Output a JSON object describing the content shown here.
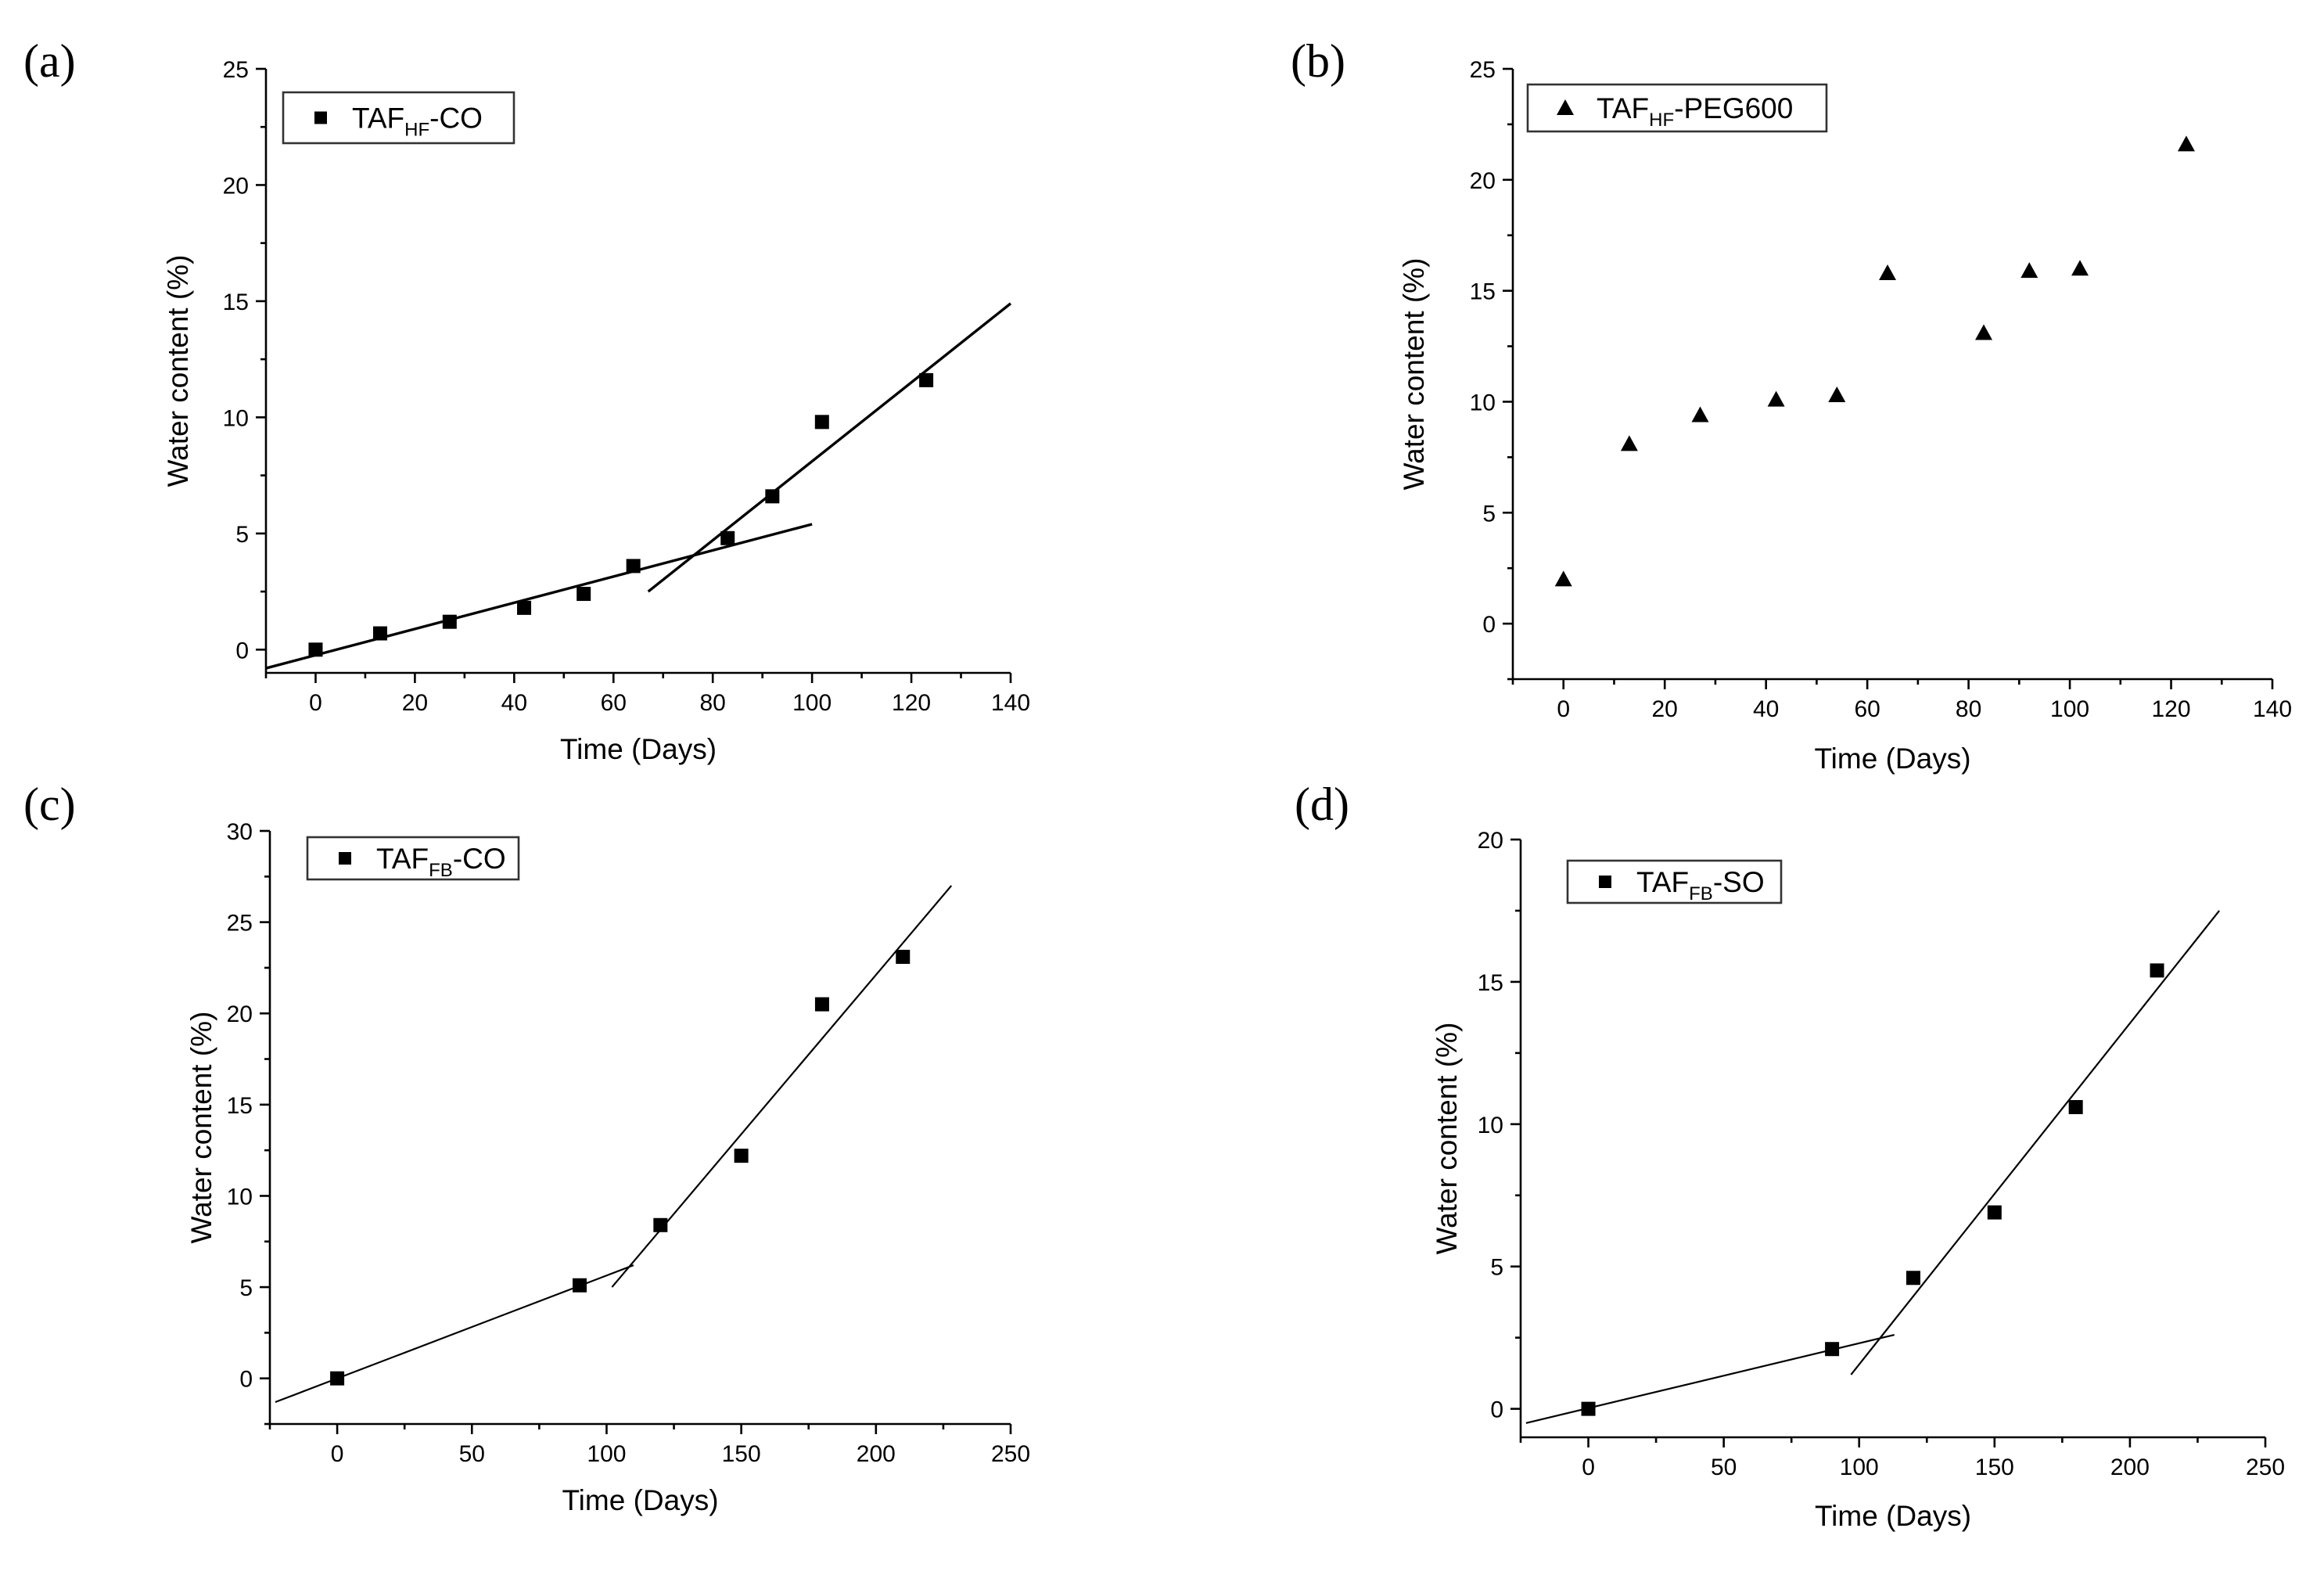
{
  "chart_data": [
    {
      "panel": "(a)",
      "type": "scatter",
      "marker": "square",
      "xlabel": "Time (Days)",
      "ylabel": "Water content (%)",
      "xlim": [
        -10,
        140
      ],
      "ylim": [
        -1,
        25
      ],
      "xticks": [
        0,
        20,
        40,
        60,
        80,
        100,
        120,
        140
      ],
      "yticks": [
        0,
        5,
        10,
        15,
        20,
        25
      ],
      "legend": {
        "base": "TAF",
        "sub": "HF",
        "suffix": "-CO",
        "position": "top-left"
      },
      "x": [
        0,
        13,
        27,
        42,
        54,
        64,
        83,
        92,
        102,
        123
      ],
      "y": [
        0,
        0.7,
        1.2,
        1.8,
        2.4,
        3.6,
        4.8,
        6.6,
        9.8,
        11.6
      ],
      "fit_lines": [
        {
          "x": [
            -10,
            100
          ],
          "y": [
            -0.8,
            5.4
          ]
        },
        {
          "x": [
            67,
            140
          ],
          "y": [
            2.5,
            14.9
          ]
        }
      ]
    },
    {
      "panel": "(b)",
      "type": "scatter",
      "marker": "triangle",
      "xlabel": "Time (Days)",
      "ylabel": "Water content (%)",
      "xlim": [
        -10,
        140
      ],
      "ylim": [
        -2.5,
        25
      ],
      "xticks": [
        0,
        20,
        40,
        60,
        80,
        100,
        120,
        140
      ],
      "yticks": [
        0,
        5,
        10,
        15,
        20,
        25
      ],
      "legend": {
        "base": "TAF",
        "sub": "HF",
        "suffix": "-PEG600",
        "position": "top-left"
      },
      "x": [
        0,
        13,
        27,
        42,
        54,
        64,
        83,
        92,
        102,
        123
      ],
      "y": [
        2.0,
        8.1,
        9.4,
        10.1,
        10.3,
        15.8,
        13.1,
        15.9,
        16.0,
        21.6
      ],
      "fit_lines": []
    },
    {
      "panel": "(c)",
      "type": "scatter",
      "marker": "square",
      "xlabel": "Time (Days)",
      "ylabel": "Water content (%)",
      "xlim": [
        -25,
        250
      ],
      "ylim": [
        -2.5,
        30
      ],
      "xticks": [
        0,
        50,
        100,
        150,
        200,
        250
      ],
      "yticks": [
        0,
        5,
        10,
        15,
        20,
        25,
        30
      ],
      "legend": {
        "base": "TAF",
        "sub": "FB",
        "suffix": "-CO",
        "position": "top-left"
      },
      "x": [
        0,
        90,
        120,
        150,
        180,
        210
      ],
      "y": [
        0,
        5.1,
        8.4,
        12.2,
        20.5,
        23.1
      ],
      "fit_lines": [
        {
          "x": [
            -23,
            110
          ],
          "y": [
            -1.3,
            6.2
          ]
        },
        {
          "x": [
            102,
            228
          ],
          "y": [
            5.0,
            27.0
          ]
        }
      ]
    },
    {
      "panel": "(d)",
      "type": "scatter",
      "marker": "square",
      "xlabel": "Time (Days)",
      "ylabel": "Water content (%)",
      "xlim": [
        -25,
        250
      ],
      "ylim": [
        -1,
        20
      ],
      "xticks": [
        0,
        50,
        100,
        150,
        200,
        250
      ],
      "yticks": [
        0,
        5,
        10,
        15,
        20
      ],
      "legend": {
        "base": "TAF",
        "sub": "FB",
        "suffix": "-SO",
        "position": "top-left"
      },
      "x": [
        0,
        90,
        120,
        150,
        180,
        210
      ],
      "y": [
        0,
        2.1,
        4.6,
        6.9,
        10.6,
        15.4
      ],
      "fit_lines": [
        {
          "x": [
            -23,
            113
          ],
          "y": [
            -0.5,
            2.6
          ]
        },
        {
          "x": [
            97,
            233
          ],
          "y": [
            1.2,
            17.5
          ]
        }
      ]
    }
  ]
}
